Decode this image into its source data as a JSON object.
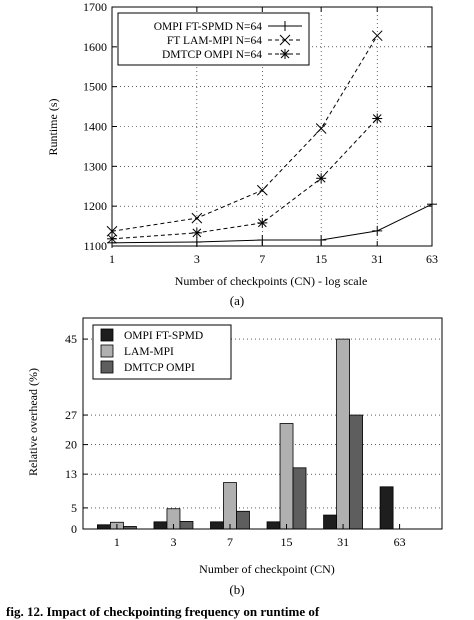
{
  "chart_data": [
    {
      "type": "line",
      "panel_label": "(a)",
      "xlabel": "Number of checkpoints (CN) - log scale",
      "ylabel": "Runtime (s)",
      "x_scale": "log",
      "x": [
        1,
        3,
        7,
        15,
        31,
        63
      ],
      "xticks": [
        "1",
        "3",
        "7",
        "15",
        "31",
        "63"
      ],
      "ylim": [
        1100,
        1700
      ],
      "yticks": [
        1100,
        1200,
        1300,
        1400,
        1500,
        1600,
        1700
      ],
      "grid": true,
      "legend_position": "top-left",
      "series": [
        {
          "name": "OMPI FT-SPMD N=64",
          "marker": "plus",
          "dash": "solid",
          "x": [
            1,
            3,
            7,
            15,
            31,
            63
          ],
          "values": [
            1108,
            1110,
            1115,
            1115,
            1138,
            1205
          ]
        },
        {
          "name": "FT LAM-MPI N=64",
          "marker": "cross",
          "dash": "dashed",
          "x": [
            1,
            3,
            7,
            15,
            31
          ],
          "values": [
            1137,
            1170,
            1240,
            1395,
            1628
          ]
        },
        {
          "name": "DMTCP OMPI N=64",
          "marker": "star",
          "dash": "dashed",
          "x": [
            1,
            3,
            7,
            15,
            31
          ],
          "values": [
            1118,
            1133,
            1158,
            1270,
            1420
          ]
        }
      ]
    },
    {
      "type": "bar",
      "panel_label": "(b)",
      "xlabel": "Number of checkpoint (CN)",
      "ylabel": "Relative overhead (%)",
      "categories": [
        "1",
        "3",
        "7",
        "15",
        "31",
        "63"
      ],
      "ylim": [
        0,
        50
      ],
      "yticks": [
        0,
        5,
        13,
        20,
        27,
        45
      ],
      "grid": true,
      "legend_position": "top-left",
      "series": [
        {
          "name": "OMPI FT-SPMD",
          "color": "#1e1e1e",
          "values": [
            1.0,
            1.7,
            1.7,
            1.7,
            3.3,
            10.0
          ]
        },
        {
          "name": "LAM-MPI",
          "color": "#b0b0b0",
          "values": [
            1.6,
            4.8,
            11.0,
            25.0,
            45.0,
            null
          ]
        },
        {
          "name": "DMTCP OMPI",
          "color": "#5e5e5e",
          "values": [
            0.6,
            1.8,
            4.2,
            14.5,
            27.0,
            null
          ]
        }
      ]
    }
  ],
  "caption_fragment": "fig. 12. Impact of checkpointing frequency on runtime of"
}
